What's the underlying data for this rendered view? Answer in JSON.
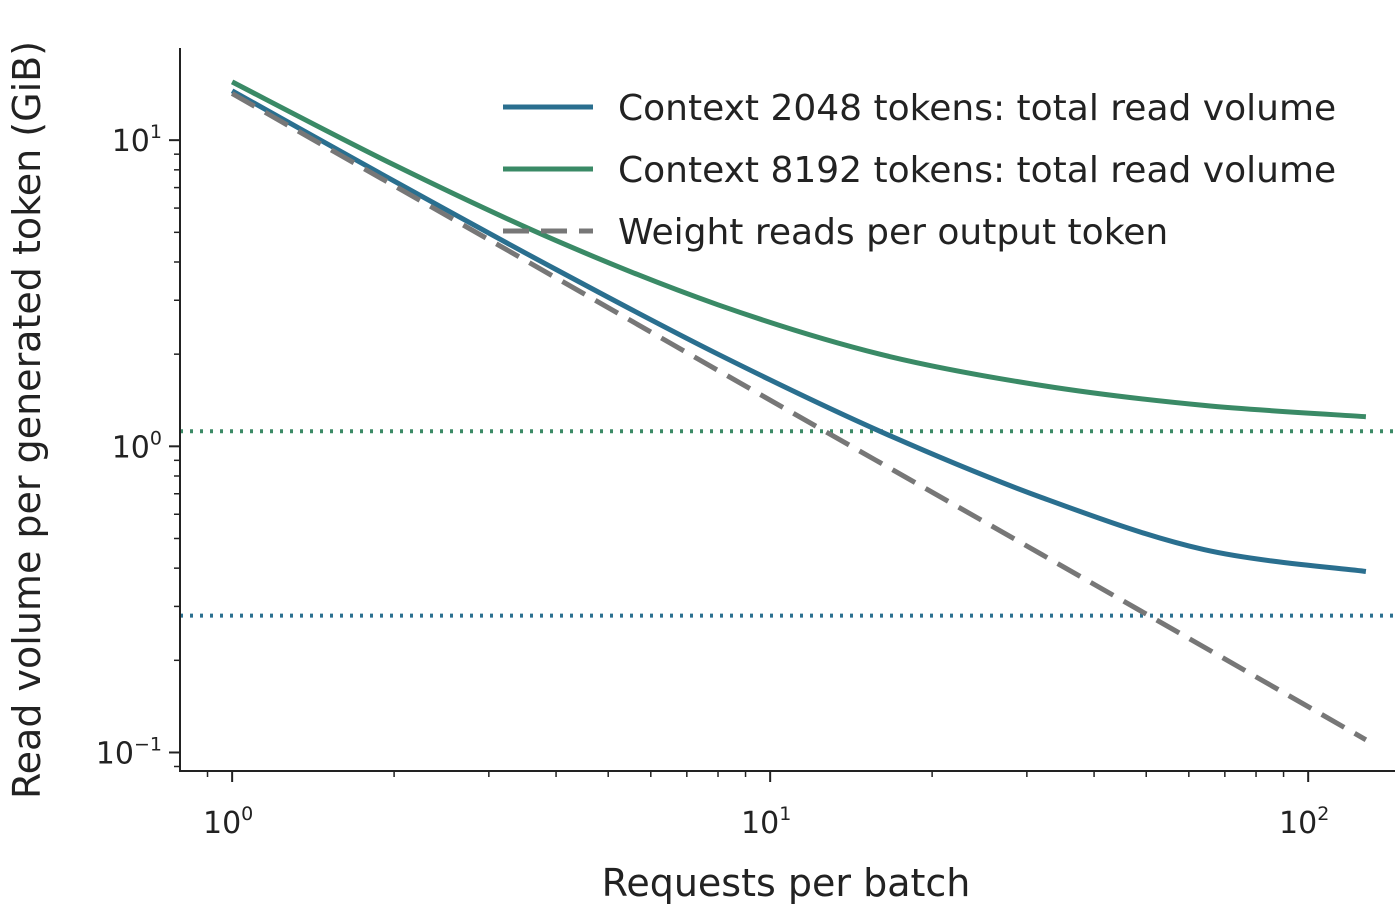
{
  "chart_data": {
    "type": "line",
    "xscale": "log",
    "yscale": "log",
    "xlabel": "Requests per batch",
    "ylabel": "Read volume per generated token (GiB)",
    "xlim": [
      0.8,
      145
    ],
    "ylim": [
      0.087,
      20
    ],
    "x_ticks": [
      {
        "base": "10",
        "exp": "0",
        "value": 1
      },
      {
        "base": "10",
        "exp": "1",
        "value": 10
      },
      {
        "base": "10",
        "exp": "2",
        "value": 100
      }
    ],
    "y_ticks": [
      {
        "base": "10",
        "exp": "−1",
        "value": 0.1
      },
      {
        "base": "10",
        "exp": "0",
        "value": 1
      },
      {
        "base": "10",
        "exp": "1",
        "value": 10
      }
    ],
    "x": [
      1,
      2,
      4,
      8,
      16,
      32,
      64,
      128
    ],
    "series": [
      {
        "name": "Context 2048 tokens: total read volume",
        "color": "#2a6f8f",
        "style": "solid",
        "values": [
          14.5,
          7.35,
          3.78,
          2.0,
          1.12,
          0.68,
          0.46,
          0.39
        ]
      },
      {
        "name": "Context 8192 tokens: total read volume",
        "color": "#3a8a66",
        "style": "solid",
        "values": [
          15.5,
          8.3,
          4.7,
          2.9,
          2.0,
          1.58,
          1.36,
          1.25
        ]
      },
      {
        "name": "Weight reads per output token",
        "color": "#777777",
        "style": "dashed",
        "values": [
          14.2,
          7.1,
          3.55,
          1.77,
          0.885,
          0.443,
          0.221,
          0.11
        ]
      }
    ],
    "reference_lines": [
      {
        "axis": "y",
        "value": 1.12,
        "color": "#3a8a66",
        "style": "dotted"
      },
      {
        "axis": "y",
        "value": 0.28,
        "color": "#2a6f8f",
        "style": "dotted"
      }
    ],
    "legend_position": "top-right",
    "grid": false
  }
}
